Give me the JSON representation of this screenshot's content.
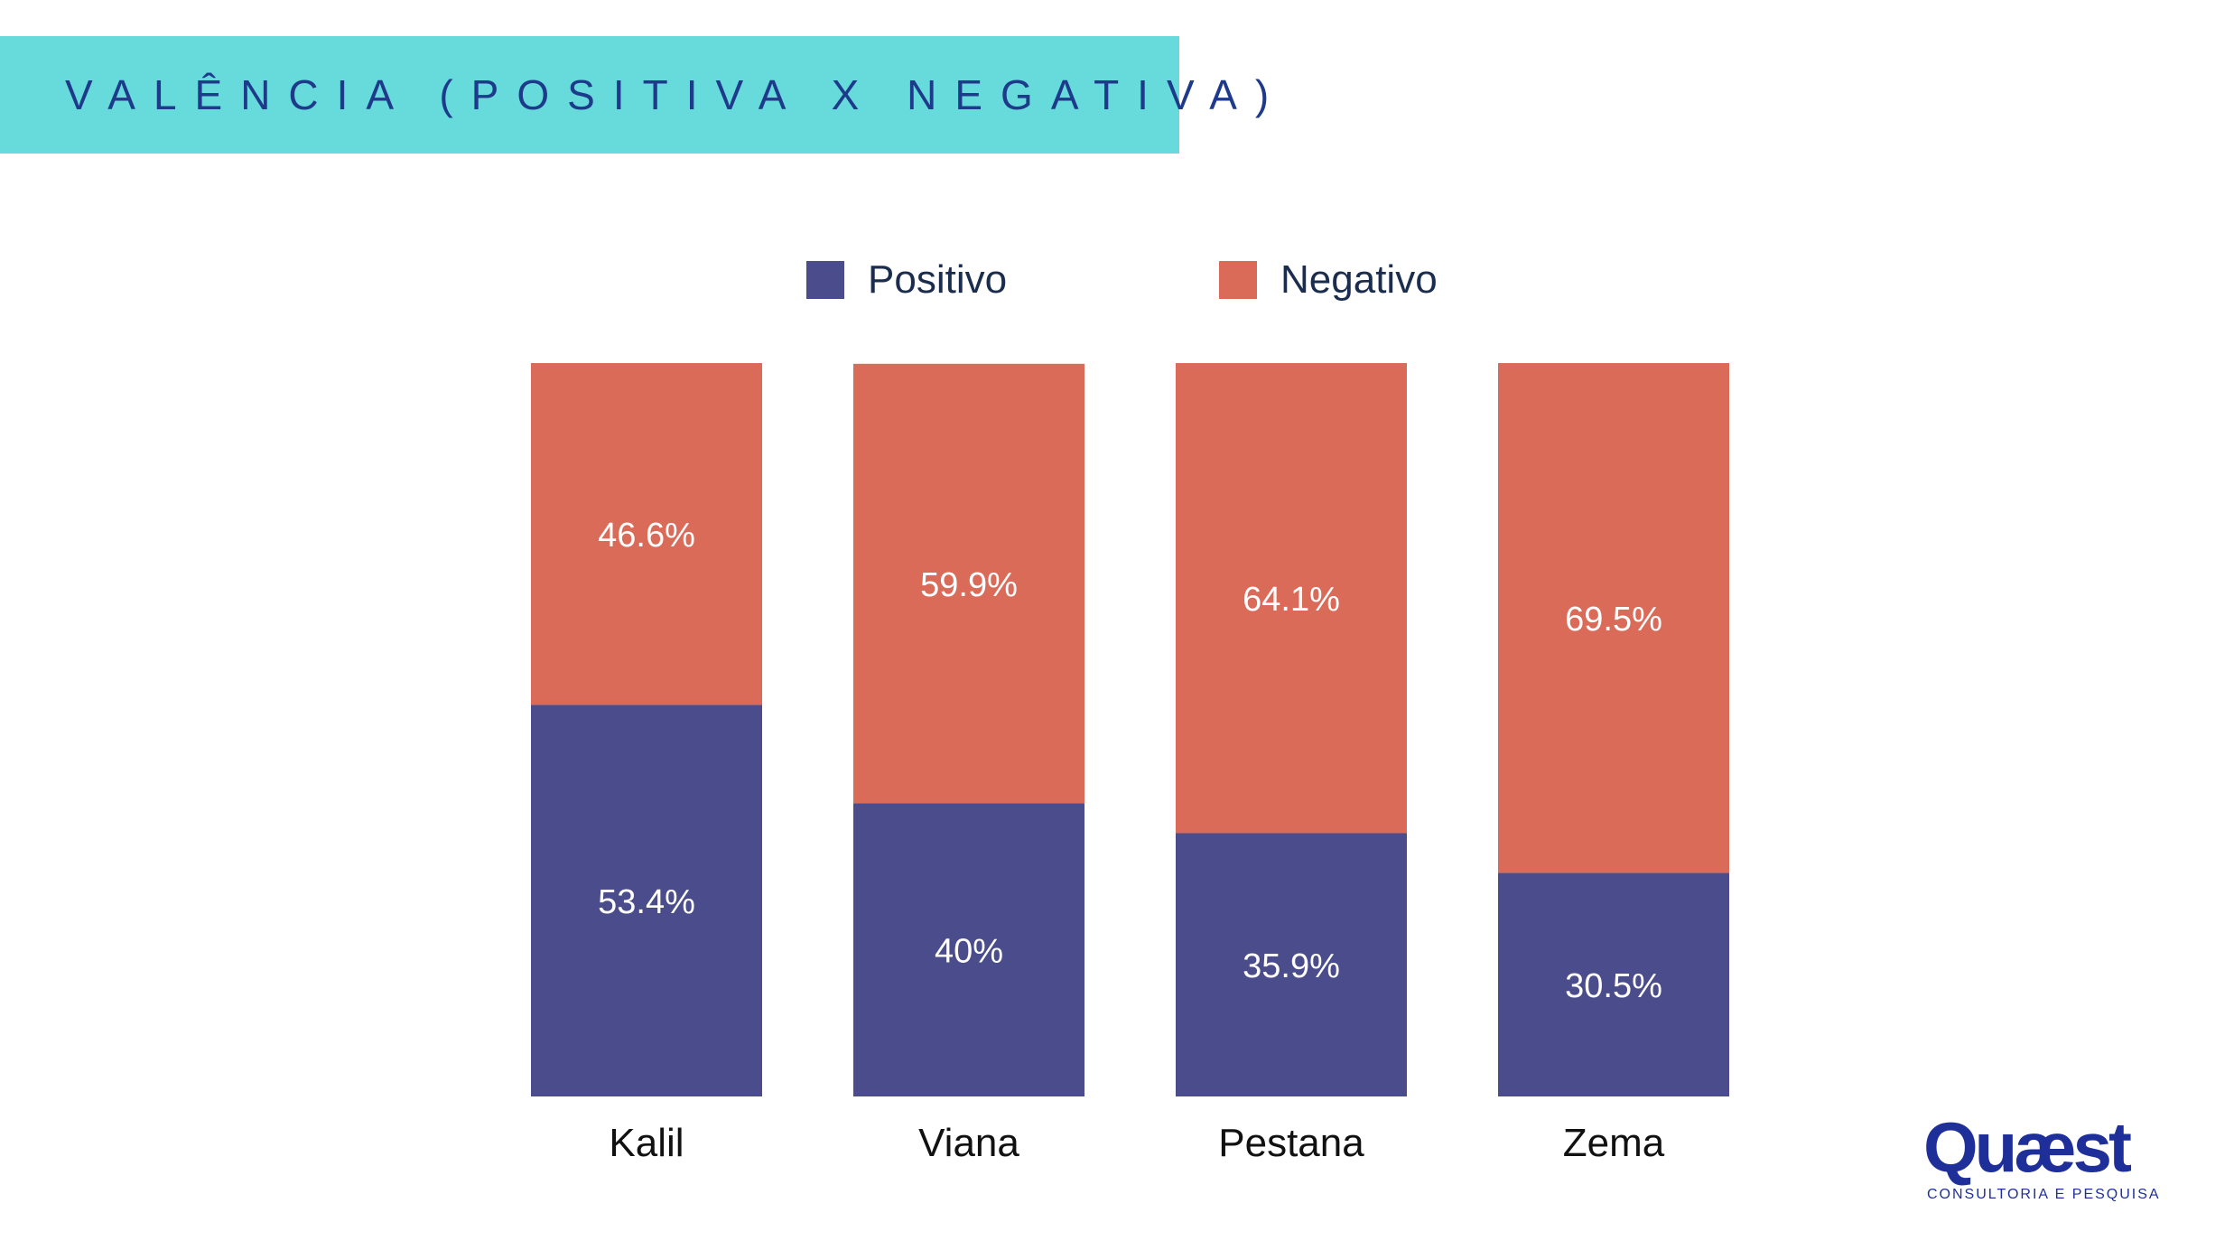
{
  "header": {
    "title": "VALÊNCIA (POSITIVA X NEGATIVA)"
  },
  "colors": {
    "positive": "#4B4C8C",
    "negative": "#DB6B59",
    "title_band": "#67DBDB",
    "title_text": "#1E3A8A",
    "logo": "#1E2F9A"
  },
  "logo": {
    "wordmark": "Quæst",
    "tagline": "CONSULTORIA E PESQUISA"
  },
  "chart_data": {
    "type": "bar",
    "stacked": true,
    "title": "VALÊNCIA (POSITIVA X NEGATIVA)",
    "categories": [
      "Kalil",
      "Viana",
      "Pestana",
      "Zema"
    ],
    "series": [
      {
        "name": "Positivo",
        "values": [
          53.4,
          40,
          35.9,
          30.5
        ],
        "labels": [
          "53.4%",
          "40%",
          "35.9%",
          "30.5%"
        ],
        "color": "#4B4C8C"
      },
      {
        "name": "Negativo",
        "values": [
          46.6,
          59.9,
          64.1,
          69.5
        ],
        "labels": [
          "46.6%",
          "59.9%",
          "64.1%",
          "69.5%"
        ],
        "color": "#DB6B59"
      }
    ],
    "ylim": [
      0,
      100
    ],
    "grid": false,
    "legend_position": "top"
  }
}
